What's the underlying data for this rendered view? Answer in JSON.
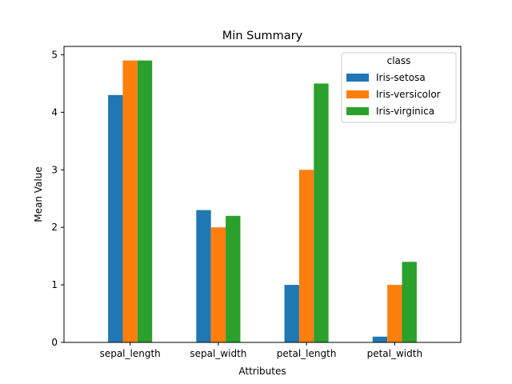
{
  "chart_data": {
    "type": "bar",
    "title": "Min Summary",
    "xlabel": "Attributes",
    "ylabel": "Mean Value",
    "categories": [
      "sepal_length",
      "sepal_width",
      "petal_length",
      "petal_width"
    ],
    "series": [
      {
        "name": "Iris-setosa",
        "color": "#1f77b4",
        "values": [
          4.3,
          2.3,
          1.0,
          0.1
        ]
      },
      {
        "name": "Iris-versicolor",
        "color": "#ff7f0e",
        "values": [
          4.9,
          2.0,
          3.0,
          1.0
        ]
      },
      {
        "name": "Iris-virginica",
        "color": "#2ca02c",
        "values": [
          4.9,
          2.2,
          4.5,
          1.4
        ]
      }
    ],
    "ylim": [
      0,
      5.145
    ],
    "yticks": [
      "0",
      "1",
      "2",
      "3",
      "4",
      "5"
    ],
    "legend_title": "class",
    "legend_position": "top-right",
    "grid": false
  }
}
